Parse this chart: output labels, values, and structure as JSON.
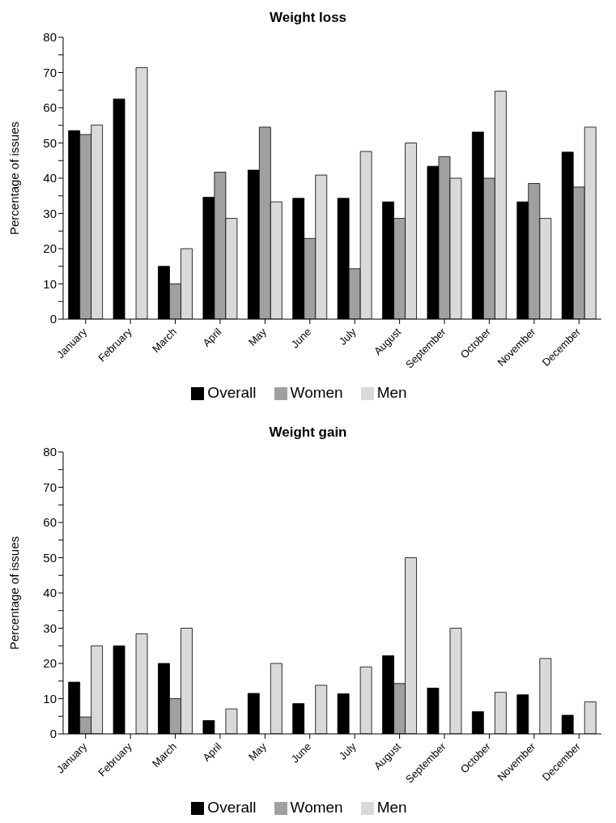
{
  "chart_data": [
    {
      "type": "bar",
      "title": "Weight loss",
      "ylabel": "Percentage of issues",
      "categories": [
        "January",
        "February",
        "March",
        "April",
        "May",
        "June",
        "July",
        "August",
        "September",
        "October",
        "November",
        "December"
      ],
      "series": [
        {
          "name": "Overall",
          "color": "#000000",
          "values": [
            53.5,
            62.5,
            15,
            34.6,
            42.3,
            34.3,
            34.3,
            33.3,
            43.4,
            53.1,
            33.3,
            47.4
          ]
        },
        {
          "name": "Women",
          "color": "#a0a0a0",
          "values": [
            52.4,
            0,
            10,
            41.7,
            54.5,
            22.9,
            14.3,
            28.6,
            46.1,
            40,
            38.5,
            37.5
          ]
        },
        {
          "name": "Men",
          "color": "#d9d9d9",
          "values": [
            55.1,
            71.4,
            20,
            28.6,
            33.3,
            40.9,
            47.6,
            50,
            40,
            64.7,
            28.6,
            54.5
          ]
        }
      ],
      "ylim": [
        0,
        80
      ],
      "yticks": [
        0,
        {
          "value": 5,
          "label": null
        },
        10,
        {
          "value": 15,
          "label": null
        },
        20,
        {
          "value": 25,
          "label": null
        },
        30,
        {
          "value": 35,
          "label": null
        },
        40,
        {
          "value": 45,
          "label": null
        },
        50,
        {
          "value": 55,
          "label": null
        },
        60,
        {
          "value": 65,
          "label": null
        },
        70,
        {
          "value": 75,
          "label": null
        },
        80
      ],
      "grid": false,
      "legend": "bottom"
    },
    {
      "type": "bar",
      "title": "Weight gain",
      "ylabel": "Percentage of issues",
      "categories": [
        "January",
        "February",
        "March",
        "April",
        "May",
        "June",
        "July",
        "August",
        "September",
        "October",
        "November",
        "December"
      ],
      "series": [
        {
          "name": "Overall",
          "color": "#000000",
          "values": [
            14.7,
            25,
            20,
            3.8,
            11.5,
            8.6,
            11.4,
            22.2,
            13,
            6.3,
            11.1,
            5.3
          ]
        },
        {
          "name": "Women",
          "color": "#a0a0a0",
          "values": [
            4.8,
            0,
            10,
            0,
            0,
            0,
            0,
            14.3,
            0,
            0,
            0,
            0
          ]
        },
        {
          "name": "Men",
          "color": "#d9d9d9",
          "values": [
            25,
            28.4,
            30,
            7.1,
            20,
            13.8,
            19,
            50,
            30,
            11.8,
            21.4,
            9.1
          ]
        }
      ],
      "ylim": [
        0,
        80
      ],
      "yticks": [
        0,
        {
          "value": 5,
          "label": null
        },
        10,
        {
          "value": 15,
          "label": null
        },
        20,
        {
          "value": 25,
          "label": null
        },
        30,
        {
          "value": 35,
          "label": null
        },
        40,
        {
          "value": 45,
          "label": null
        },
        50,
        {
          "value": 55,
          "label": null
        },
        60,
        {
          "value": 65,
          "label": null
        },
        70,
        {
          "value": 75,
          "label": null
        },
        80
      ],
      "grid": false,
      "legend": "bottom"
    }
  ]
}
